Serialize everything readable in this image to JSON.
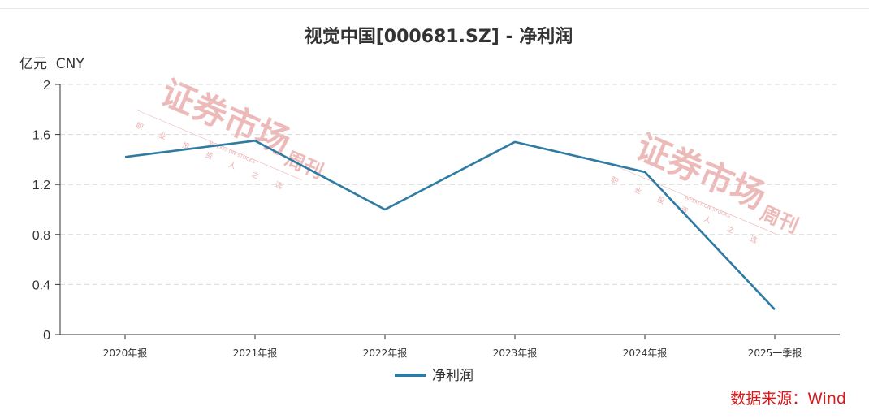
{
  "chart_data": {
    "type": "line",
    "title": "视觉中国[000681.SZ] - 净利润",
    "ylabel": "亿元  CNY",
    "xlabel": "",
    "categories": [
      "2020年报",
      "2021年报",
      "2022年报",
      "2023年报",
      "2024年报",
      "2025一季报"
    ],
    "series": [
      {
        "name": "净利润",
        "values": [
          1.42,
          1.55,
          1.0,
          1.54,
          1.3,
          0.2
        ]
      }
    ],
    "ylim": [
      0,
      2
    ],
    "yticks": [
      0,
      0.4,
      0.8,
      1.2,
      1.6,
      2
    ],
    "ytick_labels": [
      "0",
      "0.4",
      "0.8",
      "1.2",
      "1.6",
      "2"
    ],
    "grid": true,
    "legend_position": "bottom-center",
    "line_color": "#2e7ba3"
  },
  "source": "数据来源：Wind",
  "watermark": {
    "main": "证券市场",
    "side": "周刊",
    "sub": [
      "职",
      "业",
      "投",
      "资",
      "人",
      "之",
      "选"
    ],
    "en": "WEEKLY ON STOCKS"
  }
}
